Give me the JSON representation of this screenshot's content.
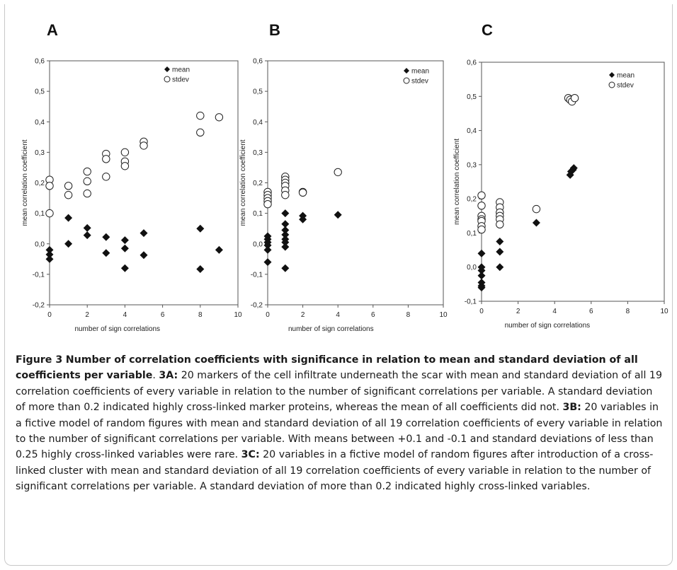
{
  "chart_data": [
    {
      "type": "scatter",
      "panel": "A",
      "xlabel": "number of sign correlations",
      "ylabel": "mean correlation coefficient",
      "xlim": [
        0,
        10
      ],
      "ylim": [
        -0.2,
        0.6
      ],
      "xticks": [
        "0",
        "2",
        "4",
        "6",
        "8",
        "10"
      ],
      "yticks": [
        "-0,2",
        "-0,1",
        "0,0",
        "0,1",
        "0,2",
        "0,3",
        "0,4",
        "0,5",
        "0,6"
      ],
      "legend": "top-right",
      "series": [
        {
          "name": "mean",
          "marker": "diamond",
          "points": [
            [
              0,
              -0.02
            ],
            [
              0,
              -0.035
            ],
            [
              0,
              -0.05
            ],
            [
              1,
              0.085
            ],
            [
              1,
              0.0
            ],
            [
              2,
              0.052
            ],
            [
              2,
              0.028
            ],
            [
              3,
              0.022
            ],
            [
              3,
              -0.03
            ],
            [
              4,
              0.012
            ],
            [
              4,
              -0.015
            ],
            [
              4,
              -0.08
            ],
            [
              5,
              0.035
            ],
            [
              5,
              -0.037
            ],
            [
              8,
              0.05
            ],
            [
              8,
              -0.083
            ],
            [
              9,
              -0.02
            ]
          ]
        },
        {
          "name": "stdev",
          "marker": "circle",
          "points": [
            [
              0,
              0.21
            ],
            [
              0,
              0.19
            ],
            [
              0,
              0.1
            ],
            [
              1,
              0.19
            ],
            [
              1,
              0.16
            ],
            [
              2,
              0.237
            ],
            [
              2,
              0.205
            ],
            [
              2,
              0.165
            ],
            [
              3,
              0.295
            ],
            [
              3,
              0.278
            ],
            [
              3,
              0.22
            ],
            [
              4,
              0.3
            ],
            [
              4,
              0.27
            ],
            [
              4,
              0.255
            ],
            [
              5,
              0.335
            ],
            [
              5,
              0.322
            ],
            [
              8,
              0.42
            ],
            [
              8,
              0.365
            ],
            [
              9,
              0.415
            ]
          ]
        }
      ]
    },
    {
      "type": "scatter",
      "panel": "B",
      "xlabel": "number of sign correlations",
      "ylabel": "mean correlation coefficient",
      "xlim": [
        0,
        10
      ],
      "ylim": [
        -0.2,
        0.6
      ],
      "xticks": [
        "0",
        "2",
        "4",
        "6",
        "8",
        "10"
      ],
      "yticks": [
        "-0,2",
        "-0,1",
        "0,0",
        "0,1",
        "0,2",
        "0,3",
        "0,4",
        "0,5",
        "0,6"
      ],
      "legend": "top-right",
      "series": [
        {
          "name": "mean",
          "marker": "diamond",
          "points": [
            [
              0,
              0.025
            ],
            [
              0,
              0.015
            ],
            [
              0,
              0.005
            ],
            [
              0,
              -0.005
            ],
            [
              0,
              -0.02
            ],
            [
              0,
              -0.06
            ],
            [
              1,
              0.1
            ],
            [
              1,
              0.065
            ],
            [
              1,
              0.045
            ],
            [
              1,
              0.03
            ],
            [
              1,
              0.015
            ],
            [
              1,
              0.005
            ],
            [
              1,
              -0.01
            ],
            [
              1,
              -0.08
            ],
            [
              2,
              0.092
            ],
            [
              2,
              0.08
            ],
            [
              4,
              0.095
            ]
          ]
        },
        {
          "name": "stdev",
          "marker": "circle",
          "points": [
            [
              0,
              0.17
            ],
            [
              0,
              0.16
            ],
            [
              0,
              0.15
            ],
            [
              0,
              0.14
            ],
            [
              0,
              0.13
            ],
            [
              1,
              0.22
            ],
            [
              1,
              0.21
            ],
            [
              1,
              0.2
            ],
            [
              1,
              0.19
            ],
            [
              1,
              0.175
            ],
            [
              1,
              0.16
            ],
            [
              2,
              0.17
            ],
            [
              2,
              0.168
            ],
            [
              4,
              0.235
            ]
          ]
        }
      ]
    },
    {
      "type": "scatter",
      "panel": "C",
      "xlabel": "number of sign correlations",
      "ylabel": "mean correlation coefficient",
      "xlim": [
        0,
        10
      ],
      "ylim": [
        -0.1,
        0.6
      ],
      "xticks": [
        "0",
        "2",
        "4",
        "6",
        "8",
        "10"
      ],
      "yticks": [
        "-0,1",
        "0,0",
        "0,1",
        "0,2",
        "0,3",
        "0,4",
        "0,5",
        "0,6"
      ],
      "legend": "top-right",
      "series": [
        {
          "name": "mean",
          "marker": "diamond",
          "points": [
            [
              0,
              0.04
            ],
            [
              0,
              0.0
            ],
            [
              0,
              -0.01
            ],
            [
              0,
              -0.025
            ],
            [
              0,
              -0.045
            ],
            [
              0,
              -0.055
            ],
            [
              0,
              -0.06
            ],
            [
              1,
              0.14
            ],
            [
              1,
              0.075
            ],
            [
              1,
              0.045
            ],
            [
              1,
              0.0
            ],
            [
              3,
              0.13
            ],
            [
              4.85,
              0.27
            ],
            [
              4.9,
              0.28
            ],
            [
              5,
              0.285
            ],
            [
              5.05,
              0.29
            ]
          ]
        },
        {
          "name": "stdev",
          "marker": "circle",
          "points": [
            [
              0,
              0.21
            ],
            [
              0,
              0.18
            ],
            [
              0,
              0.15
            ],
            [
              0,
              0.14
            ],
            [
              0,
              0.135
            ],
            [
              0,
              0.12
            ],
            [
              0,
              0.11
            ],
            [
              1,
              0.19
            ],
            [
              1,
              0.175
            ],
            [
              1,
              0.16
            ],
            [
              1,
              0.15
            ],
            [
              1,
              0.14
            ],
            [
              1,
              0.125
            ],
            [
              3,
              0.17
            ],
            [
              4.75,
              0.495
            ],
            [
              4.85,
              0.49
            ],
            [
              4.95,
              0.485
            ],
            [
              5.1,
              0.495
            ]
          ]
        }
      ]
    }
  ],
  "caption": {
    "label": "Figure 3",
    "title": "Number of correlation coefficients with significance in relation to mean and standard deviation of all coefficients per variable",
    "part_a_label": "3A:",
    "part_a": "20 markers of the cell infiltrate underneath the scar with mean and standard deviation of all 19 correlation coefficients of every variable in relation to the number of significant correlations per variable. A standard deviation of more than 0.2 indicated highly cross-linked marker proteins, whereas the mean of all coefficients did not.",
    "part_b_label": "3B:",
    "part_b": "20 variables in a fictive model of random figures with mean and standard deviation of all 19 correlation coefficients of every variable in relation to the number of significant correlations per variable. With means between +0.1 and -0.1 and standard deviations of less than 0.25 highly cross-linked variables were rare.",
    "part_c_label": "3C:",
    "part_c": "20 variables in a fictive model of random figures after introduction of a cross-linked cluster with mean and standard deviation of all 19 correlation coefficients of every variable in relation to the number of significant correlations per variable. A standard deviation of more than 0.2 indicated highly cross-linked variables."
  }
}
